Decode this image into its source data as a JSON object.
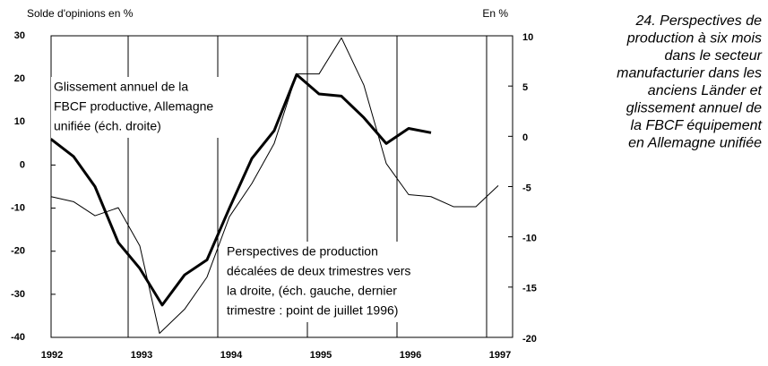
{
  "chart_data": {
    "type": "line",
    "ylabel": "Solde d'opinions en %",
    "y2label": "En %",
    "caption": [
      "24. Perspectives de",
      "production à six mois",
      "dans le secteur",
      "manufacturier dans les",
      "anciens Länder et",
      "glissement annuel de",
      "la FBCF équipement",
      "en Allemagne unifiée"
    ],
    "annotations": [
      {
        "lines": [
          "Glissement annuel de la",
          "FBCF productive, Allemagne",
          "unifiée (éch. droite)"
        ]
      },
      {
        "lines": [
          "Perspectives de production",
          "décalées de deux trimestres vers",
          "la droite, (éch. gauche, dernier",
          "trimestre : point de juillet 1996)"
        ]
      }
    ],
    "xlim": [
      1992.14,
      1997.29
    ],
    "xticks": [
      1992,
      1993,
      1994,
      1995,
      1996,
      1997
    ],
    "ylim": [
      -40,
      30
    ],
    "yticks": [
      30,
      20,
      10,
      0,
      -10,
      -20,
      -30,
      -40
    ],
    "y2lim": [
      -20,
      10
    ],
    "y2ticks": [
      10,
      5,
      0,
      -5,
      -10,
      -15,
      -20
    ],
    "grid": true,
    "series": [
      {
        "name": "Perspectives de production",
        "color": "#000000",
        "width": 3,
        "x": [
          1992.14,
          1992.39,
          1992.63,
          1992.89,
          1993.13,
          1993.38,
          1993.63,
          1993.88,
          1994.13,
          1994.38,
          1994.63,
          1994.88,
          1995.13,
          1995.38,
          1995.63,
          1995.88,
          1996.13,
          1996.38
        ],
        "values": [
          6,
          2,
          -5,
          -18,
          -24,
          -32.5,
          -25.5,
          -22,
          -10,
          1.5,
          8,
          21,
          16.5,
          16,
          11,
          5,
          8.5,
          7.5
        ]
      },
      {
        "name": "Glissement annuel de la FBCF",
        "color": "#000000",
        "width": 1,
        "axis": "y2",
        "x": [
          1992.14,
          1992.39,
          1992.63,
          1992.89,
          1993.13,
          1993.35,
          1993.63,
          1993.88,
          1994.13,
          1994.38,
          1994.63,
          1994.88,
          1995.13,
          1995.38,
          1995.63,
          1995.88,
          1996.13,
          1996.38,
          1996.63,
          1996.88,
          1997.13
        ],
        "values": [
          -6,
          -6.5,
          -7.9,
          -7.1,
          -10.9,
          -19.6,
          -17.2,
          -14,
          -8,
          -4.7,
          -0.7,
          6.2,
          6.2,
          9.8,
          5.1,
          -2.7,
          -5.8,
          -6,
          -7,
          -7,
          -4.9
        ]
      }
    ]
  }
}
